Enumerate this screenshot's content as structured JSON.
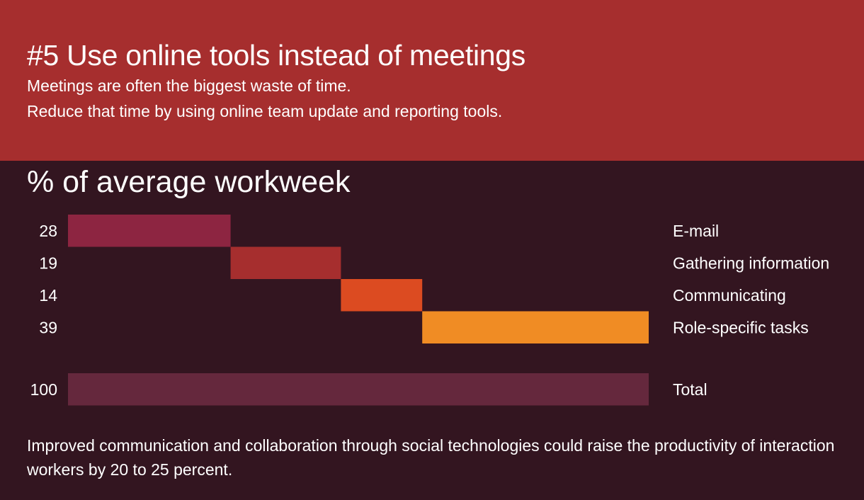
{
  "header": {
    "title": "#5 Use online tools instead of meetings",
    "subtitle_line1": "Meetings are often the biggest waste of time.",
    "subtitle_line2": "Reduce that time by using online team update and reporting tools."
  },
  "chart_heading": "% of average workweek",
  "chart_data": {
    "type": "bar",
    "orientation": "horizontal-waterfall",
    "categories": [
      "E-mail",
      "Gathering information",
      "Communicating",
      "Role-specific tasks"
    ],
    "values": [
      28,
      19,
      14,
      39
    ],
    "colors": [
      "#8d2541",
      "#a62e2e",
      "#dc4b21",
      "#f08c24"
    ],
    "total": {
      "label": "Total",
      "value": 100,
      "color": "#65283d"
    },
    "xlim": [
      0,
      100
    ],
    "grid": false
  },
  "footnote": "Improved communication and collaboration through social technologies could raise the productivity of interaction workers by 20 to 25 percent.",
  "colors": {
    "header_bg": "#a62e2e",
    "body_bg": "#331520"
  }
}
